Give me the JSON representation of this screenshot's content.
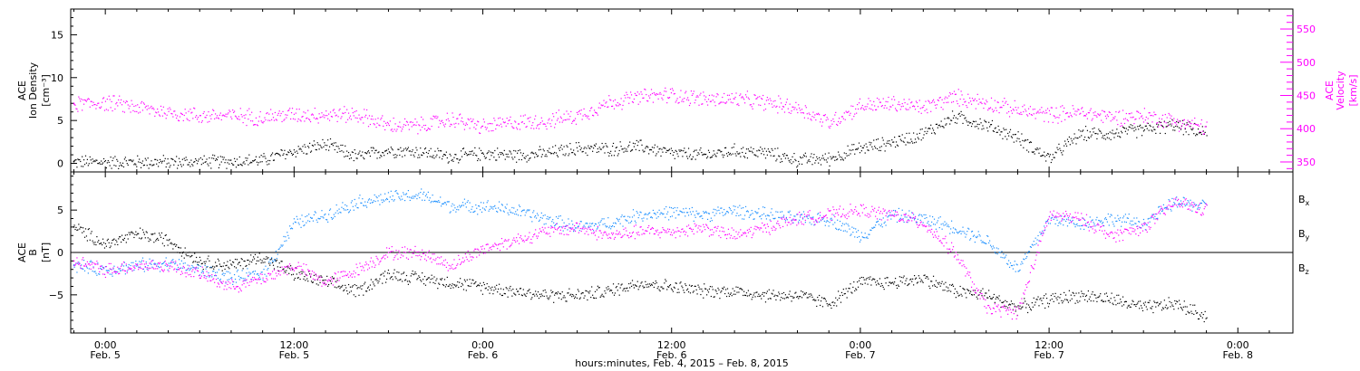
{
  "colors": {
    "black": "#000000",
    "magenta": "#ff00ff",
    "blue": "#1e90ff",
    "axis": "#000000"
  },
  "x_axis": {
    "title": "hours:minutes, Feb. 4, 2015 – Feb. 8, 2015",
    "ticks": [
      {
        "t": 0,
        "time": "0:00",
        "date": "Feb. 5"
      },
      {
        "t": 12,
        "time": "12:00",
        "date": "Feb. 5"
      },
      {
        "t": 24,
        "time": "0:00",
        "date": "Feb. 6"
      },
      {
        "t": 36,
        "time": "12:00",
        "date": "Feb. 6"
      },
      {
        "t": 48,
        "time": "0:00",
        "date": "Feb. 7"
      },
      {
        "t": 60,
        "time": "12:00",
        "date": "Feb. 7"
      },
      {
        "t": 72,
        "time": "0:00",
        "date": "Feb. 8"
      }
    ],
    "range_hours_from_feb5": [
      -2.2,
      75.5
    ]
  },
  "panels": {
    "top": {
      "left_label": [
        "ACE",
        "Ion Density",
        "[cm⁻³]"
      ],
      "right_label": [
        "ACE",
        "Velocity",
        "[km/s]"
      ],
      "left_ticks": [
        "0",
        "5",
        "10",
        "15"
      ],
      "right_ticks": [
        "350",
        "400",
        "450",
        "500",
        "550"
      ]
    },
    "bottom": {
      "left_label": [
        "ACE",
        "B",
        "[nT]"
      ],
      "left_ticks": [
        "−5",
        "0",
        "5"
      ],
      "legend": [
        {
          "name": "B",
          "sub": "x",
          "color": "#000000"
        },
        {
          "name": "B",
          "sub": "y",
          "color": "#1e90ff"
        },
        {
          "name": "B",
          "sub": "z",
          "color": "#ff00ff"
        }
      ]
    }
  },
  "chart_data": [
    {
      "type": "scatter",
      "title": "",
      "xlabel": "hours:minutes, Feb. 4, 2015 – Feb. 8, 2015",
      "x_units": "hours from Feb. 5 0:00",
      "ylabel": "ACE Ion Density [cm⁻³]",
      "y2label": "ACE Velocity [km/s]",
      "ylim": [
        -1,
        18
      ],
      "y2lim": [
        335,
        580
      ],
      "grid": false,
      "series": [
        {
          "name": "Ion Density",
          "axis": "left",
          "color": "#000000",
          "x": [
            -2,
            0,
            2,
            4,
            6,
            8,
            10,
            12,
            14,
            16,
            18,
            20,
            22,
            24,
            26,
            28,
            30,
            32,
            34,
            36,
            38,
            40,
            42,
            44,
            46,
            48,
            50,
            52,
            54,
            56,
            58,
            60,
            62,
            64,
            66,
            68,
            70
          ],
          "y": [
            0.2,
            0.2,
            0.2,
            0.2,
            0.2,
            0.3,
            0.4,
            1.5,
            2.2,
            0.8,
            1.6,
            1.4,
            0.8,
            1.2,
            1.0,
            1.2,
            1.8,
            1.7,
            2.0,
            1.2,
            1.0,
            1.5,
            1.3,
            0.4,
            0.6,
            1.8,
            2.5,
            3.5,
            5.5,
            4.5,
            3.0,
            0.6,
            3.5,
            3.5,
            4.0,
            4.5,
            3.5
          ]
        },
        {
          "name": "Velocity",
          "axis": "right",
          "color": "#ff00ff",
          "x": [
            -2,
            0,
            2,
            4,
            6,
            8,
            10,
            12,
            14,
            16,
            18,
            20,
            22,
            24,
            26,
            28,
            30,
            32,
            34,
            36,
            38,
            40,
            42,
            44,
            46,
            48,
            50,
            52,
            54,
            56,
            58,
            60,
            62,
            64,
            66,
            68,
            70
          ],
          "y": [
            438,
            440,
            433,
            425,
            420,
            420,
            418,
            422,
            422,
            422,
            405,
            405,
            415,
            403,
            410,
            412,
            420,
            440,
            448,
            452,
            445,
            445,
            440,
            432,
            410,
            435,
            438,
            432,
            448,
            440,
            428,
            422,
            425,
            418,
            420,
            412,
            402
          ]
        }
      ]
    },
    {
      "type": "scatter",
      "title": "",
      "xlabel": "hours:minutes, Feb. 4, 2015 – Feb. 8, 2015",
      "x_units": "hours from Feb. 5 0:00",
      "ylabel": "ACE B [nT]",
      "ylim": [
        -9.5,
        9.5
      ],
      "grid": false,
      "zero_line": true,
      "series": [
        {
          "name": "Bₓ",
          "color": "#000000",
          "x": [
            -2,
            0,
            2,
            4,
            6,
            8,
            10,
            12,
            14,
            16,
            18,
            20,
            22,
            24,
            26,
            28,
            30,
            32,
            34,
            36,
            38,
            40,
            42,
            44,
            46,
            48,
            50,
            52,
            54,
            56,
            58,
            60,
            62,
            64,
            66,
            68,
            70
          ],
          "y": [
            3.0,
            1.0,
            2.2,
            1.5,
            -1.0,
            -1.5,
            -0.5,
            -2.5,
            -3.5,
            -4.5,
            -2.5,
            -3.0,
            -3.5,
            -4.0,
            -4.5,
            -5.0,
            -5.0,
            -4.5,
            -3.5,
            -4.0,
            -4.5,
            -4.5,
            -5.0,
            -5.0,
            -6.0,
            -3.5,
            -3.5,
            -3.0,
            -4.5,
            -5.0,
            -6.5,
            -5.5,
            -5.0,
            -5.5,
            -6.5,
            -6.0,
            -7.5
          ]
        },
        {
          "name": "Bᵧ",
          "color": "#1e90ff",
          "x": [
            -2,
            0,
            2,
            4,
            6,
            8,
            10,
            12,
            14,
            16,
            18,
            20,
            22,
            24,
            26,
            28,
            30,
            32,
            34,
            36,
            38,
            40,
            42,
            44,
            46,
            48,
            50,
            52,
            54,
            56,
            58,
            60,
            62,
            64,
            66,
            68,
            70
          ],
          "y": [
            -1.5,
            -2.0,
            -1.5,
            -1.2,
            -2.0,
            -3.0,
            -2.5,
            3.5,
            4.5,
            6.0,
            6.5,
            6.8,
            5.5,
            5.5,
            5.0,
            4.0,
            3.0,
            3.5,
            4.5,
            4.8,
            4.5,
            5.0,
            4.5,
            4.0,
            4.0,
            2.0,
            4.5,
            4.0,
            3.0,
            1.5,
            -2.0,
            4.0,
            3.5,
            4.0,
            3.5,
            6.0,
            5.5
          ]
        },
        {
          "name": "Bᶻ",
          "color": "#ff00ff",
          "x": [
            -2,
            0,
            2,
            4,
            6,
            8,
            10,
            12,
            14,
            16,
            18,
            20,
            22,
            24,
            26,
            28,
            30,
            32,
            34,
            36,
            38,
            40,
            42,
            44,
            46,
            48,
            50,
            52,
            54,
            56,
            58,
            60,
            62,
            64,
            66,
            68,
            70
          ],
          "y": [
            -1.0,
            -2.0,
            -1.5,
            -1.5,
            -2.5,
            -4.0,
            -3.0,
            -1.5,
            -3.5,
            -2.0,
            0.0,
            0.0,
            -1.5,
            0.5,
            1.5,
            2.5,
            3.0,
            2.0,
            2.5,
            2.5,
            3.0,
            2.0,
            3.0,
            4.0,
            4.5,
            5.0,
            4.5,
            3.5,
            0.0,
            -6.5,
            -7.0,
            4.5,
            4.0,
            2.0,
            3.0,
            6.0,
            5.0
          ]
        }
      ]
    }
  ]
}
